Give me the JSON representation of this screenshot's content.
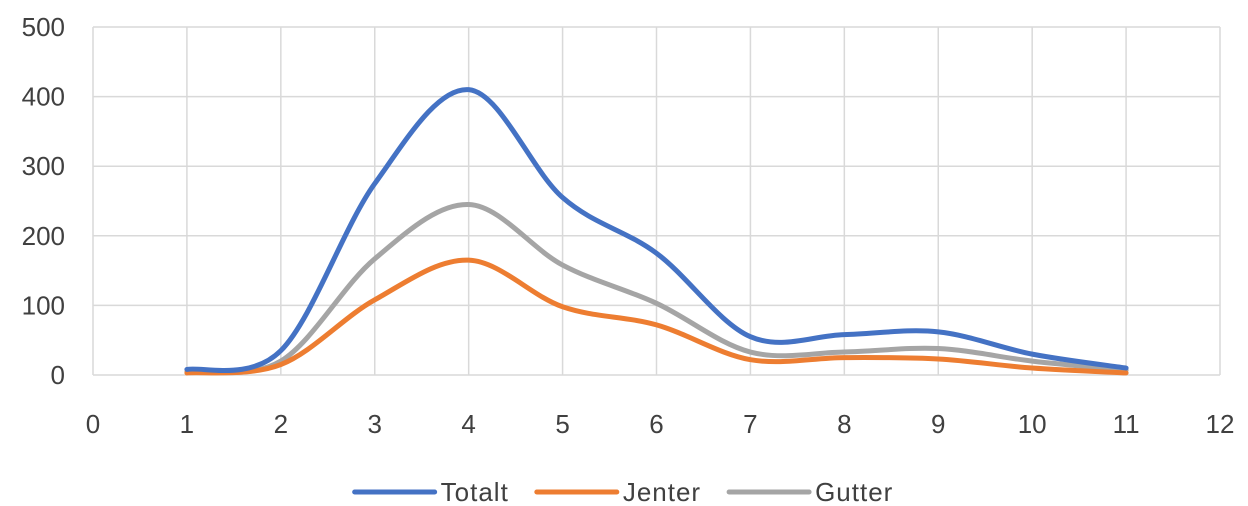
{
  "chart_data": {
    "type": "line",
    "smooth": true,
    "x_ticks": [
      0,
      1,
      2,
      3,
      4,
      5,
      6,
      7,
      8,
      9,
      10,
      11,
      12
    ],
    "y_ticks": [
      0,
      100,
      200,
      300,
      400,
      500
    ],
    "xlim": [
      0,
      12
    ],
    "ylim": [
      0,
      500
    ],
    "grid": true,
    "legend_position": "bottom",
    "x": [
      1,
      2,
      3,
      4,
      5,
      6,
      7,
      8,
      9,
      10,
      11
    ],
    "series": [
      {
        "name": "Totalt",
        "color": "#4472C4",
        "values": [
          8,
          35,
          275,
          410,
          255,
          175,
          55,
          58,
          62,
          30,
          10
        ]
      },
      {
        "name": "Jenter",
        "color": "#ED7D31",
        "values": [
          3,
          15,
          108,
          165,
          98,
          72,
          22,
          25,
          23,
          10,
          3
        ]
      },
      {
        "name": "Gutter",
        "color": "#A5A5A5",
        "values": [
          5,
          20,
          167,
          245,
          158,
          103,
          33,
          33,
          38,
          20,
          7
        ]
      }
    ]
  }
}
